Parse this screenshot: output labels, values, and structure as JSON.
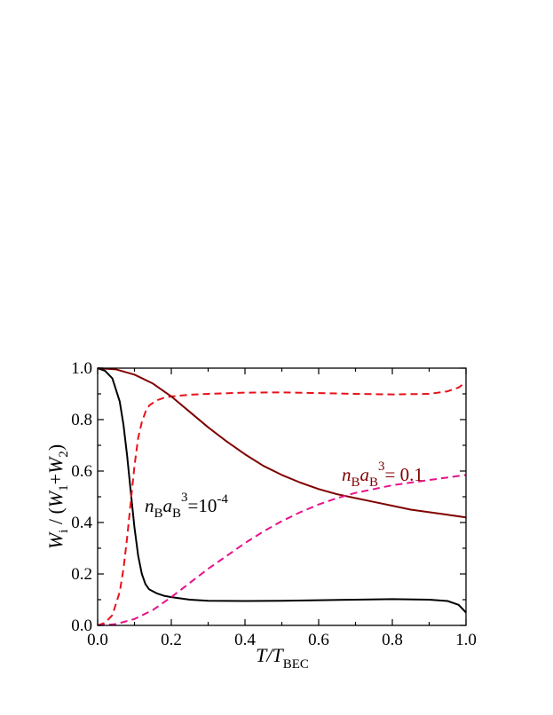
{
  "chart_data": {
    "type": "line",
    "xlabel": {
      "main": "T/T",
      "sub": "BEC"
    },
    "ylabel": {
      "w": "W",
      "i": "i",
      "mid": " / (",
      "w1": "W",
      "s1": "1",
      "plus": "+",
      "w2": "W",
      "s2": "2",
      "close": ")"
    },
    "xlim": [
      0.0,
      1.0
    ],
    "ylim": [
      0.0,
      1.0
    ],
    "x_ticks": [
      "0.0",
      "0.2",
      "0.4",
      "0.6",
      "0.8",
      "1.0"
    ],
    "y_ticks": [
      "0.0",
      "0.2",
      "0.4",
      "0.6",
      "0.8",
      "1.0"
    ],
    "grid": false,
    "series": [
      {
        "color": "#000000",
        "style": "solid",
        "x": [
          0.0,
          0.02,
          0.04,
          0.06,
          0.07,
          0.08,
          0.09,
          0.1,
          0.11,
          0.12,
          0.13,
          0.14,
          0.16,
          0.18,
          0.2,
          0.25,
          0.3,
          0.4,
          0.5,
          0.6,
          0.7,
          0.8,
          0.9,
          0.95,
          0.98,
          1.0
        ],
        "y": [
          1.0,
          0.99,
          0.96,
          0.87,
          0.78,
          0.66,
          0.52,
          0.38,
          0.27,
          0.2,
          0.16,
          0.14,
          0.125,
          0.115,
          0.11,
          0.1,
          0.096,
          0.095,
          0.096,
          0.098,
          0.1,
          0.102,
          0.1,
          0.095,
          0.08,
          0.05
        ]
      },
      {
        "color": "#e8101a",
        "style": "dashed",
        "x": [
          0.0,
          0.02,
          0.04,
          0.06,
          0.07,
          0.08,
          0.09,
          0.1,
          0.11,
          0.12,
          0.13,
          0.14,
          0.16,
          0.18,
          0.2,
          0.25,
          0.3,
          0.4,
          0.5,
          0.6,
          0.7,
          0.8,
          0.9,
          0.95,
          0.98,
          1.0
        ],
        "y": [
          0.0,
          0.01,
          0.04,
          0.13,
          0.22,
          0.34,
          0.48,
          0.62,
          0.73,
          0.79,
          0.83,
          0.855,
          0.875,
          0.885,
          0.89,
          0.897,
          0.9,
          0.905,
          0.906,
          0.903,
          0.9,
          0.898,
          0.9,
          0.91,
          0.925,
          0.945
        ]
      },
      {
        "color": "#800000",
        "style": "solid",
        "x": [
          0.0,
          0.05,
          0.1,
          0.15,
          0.2,
          0.25,
          0.3,
          0.35,
          0.4,
          0.45,
          0.5,
          0.55,
          0.6,
          0.65,
          0.7,
          0.75,
          0.8,
          0.85,
          0.9,
          0.95,
          1.0
        ],
        "y": [
          1.0,
          0.995,
          0.975,
          0.94,
          0.89,
          0.83,
          0.77,
          0.715,
          0.665,
          0.62,
          0.585,
          0.555,
          0.53,
          0.51,
          0.495,
          0.48,
          0.465,
          0.45,
          0.44,
          0.43,
          0.42
        ]
      },
      {
        "color": "#e8108a",
        "style": "dashed",
        "x": [
          0.0,
          0.05,
          0.1,
          0.15,
          0.2,
          0.25,
          0.3,
          0.35,
          0.4,
          0.45,
          0.5,
          0.55,
          0.6,
          0.65,
          0.7,
          0.75,
          0.8,
          0.85,
          0.9,
          0.95,
          1.0
        ],
        "y": [
          0.0,
          0.005,
          0.025,
          0.06,
          0.11,
          0.165,
          0.22,
          0.27,
          0.32,
          0.365,
          0.405,
          0.44,
          0.47,
          0.495,
          0.515,
          0.53,
          0.545,
          0.555,
          0.565,
          0.575,
          0.585
        ]
      }
    ],
    "annotations": [
      {
        "color": "#000000",
        "n": "n",
        "nsub": "B",
        "a": "a",
        "asub": "B",
        "sup": "3",
        "eq": "=10",
        "exp": "-4"
      },
      {
        "color": "#800000",
        "n": "n",
        "nsub": "B",
        "a": "a",
        "asub": "B",
        "sup": "3",
        "eq": "= 0.1",
        "exp": ""
      }
    ]
  }
}
